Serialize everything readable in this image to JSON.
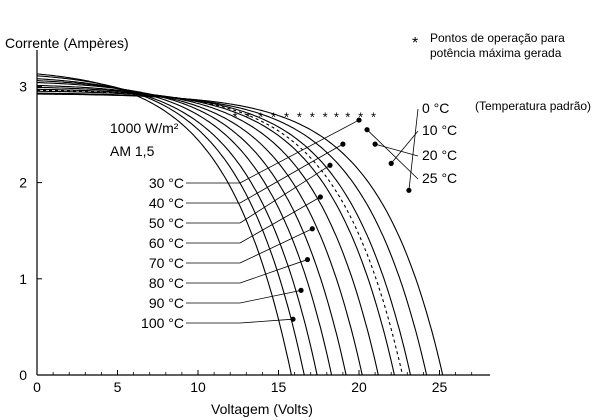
{
  "chart_data": {
    "type": "line",
    "title": "",
    "ylabel": "Corrente (Ampères)",
    "xlabel": "Voltagem (Volts)",
    "xlim": [
      0,
      28
    ],
    "ylim": [
      0,
      3.3
    ],
    "xticks": [
      0,
      5,
      10,
      15,
      20,
      25
    ],
    "yticks": [
      0,
      1,
      2,
      3
    ],
    "grid": false,
    "conditions": [
      "1000 W/m²",
      "AM 1,5"
    ],
    "legend": {
      "marker": "*",
      "text_line1": "Pontos de operação para",
      "text_line2": "potência máxima gerada"
    },
    "series": [
      {
        "name": "0 °C",
        "isc": 2.92,
        "voc": 25.2,
        "mpp": [
          23.1,
          1.92
        ],
        "dashed": false,
        "label_side": "right"
      },
      {
        "name": "10 °C",
        "isc": 2.93,
        "voc": 24.2,
        "mpp": [
          22.0,
          2.2
        ],
        "dashed": false,
        "label_side": "right"
      },
      {
        "name": "20 °C",
        "isc": 2.95,
        "voc": 23.2,
        "mpp": [
          21.0,
          2.4
        ],
        "dashed": false,
        "label_side": "right"
      },
      {
        "name": "25 °C",
        "isc": 2.96,
        "voc": 22.7,
        "mpp": [
          20.5,
          2.55
        ],
        "dashed": true,
        "label_side": "right",
        "note": "(Temperatura padrão)"
      },
      {
        "name": "30 °C",
        "isc": 2.97,
        "voc": 22.2,
        "mpp": [
          20.0,
          2.65
        ],
        "dashed": false,
        "label_side": "left"
      },
      {
        "name": "40 °C",
        "isc": 2.99,
        "voc": 21.2,
        "mpp": [
          19.0,
          2.4
        ],
        "dashed": false,
        "label_side": "left"
      },
      {
        "name": "50 °C",
        "isc": 3.01,
        "voc": 20.2,
        "mpp": [
          18.2,
          2.18
        ],
        "dashed": false,
        "label_side": "left"
      },
      {
        "name": "60 °C",
        "isc": 3.04,
        "voc": 19.2,
        "mpp": [
          17.6,
          1.85
        ],
        "dashed": false,
        "label_side": "left"
      },
      {
        "name": "70 °C",
        "isc": 3.06,
        "voc": 18.3,
        "mpp": [
          17.1,
          1.52
        ],
        "dashed": false,
        "label_side": "left"
      },
      {
        "name": "80 °C",
        "isc": 3.08,
        "voc": 17.4,
        "mpp": [
          16.8,
          1.2
        ],
        "dashed": false,
        "label_side": "left"
      },
      {
        "name": "90 °C",
        "isc": 3.11,
        "voc": 16.6,
        "mpp": [
          16.4,
          0.88
        ],
        "dashed": false,
        "label_side": "left"
      },
      {
        "name": "100 °C",
        "isc": 3.13,
        "voc": 15.8,
        "mpp": [
          15.9,
          0.58
        ],
        "dashed": false,
        "label_side": "left"
      }
    ],
    "mpp_markers_x": [
      12.3,
      13.1,
      13.9,
      14.7,
      15.5,
      16.3,
      17.1,
      17.9,
      18.6,
      19.3,
      20.1,
      20.9
    ]
  }
}
